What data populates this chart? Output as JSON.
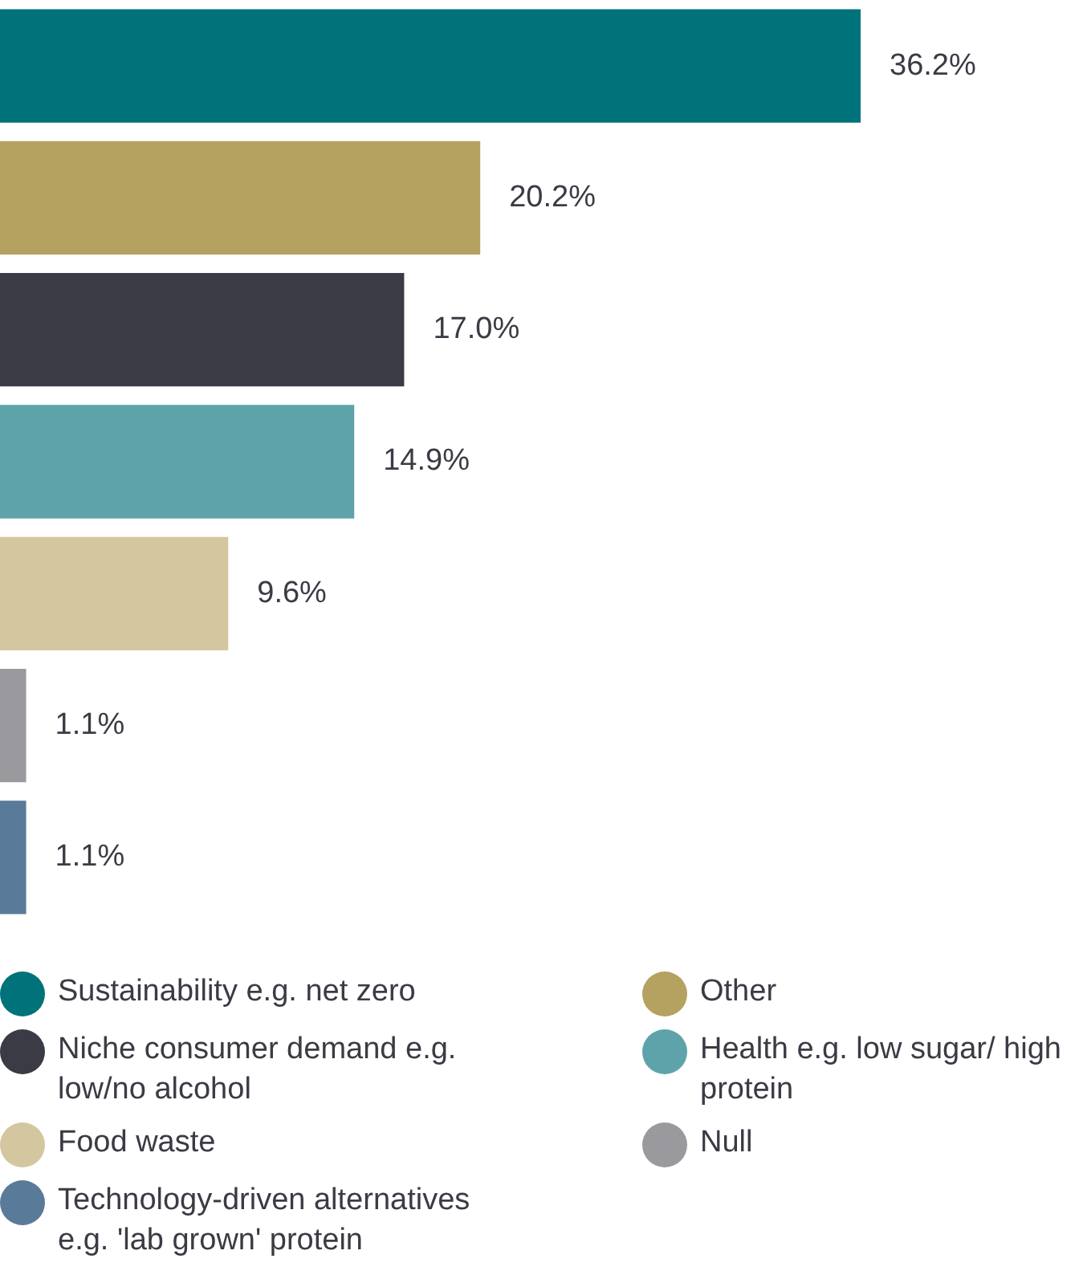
{
  "chart_data": {
    "type": "bar",
    "orientation": "horizontal",
    "stacked": true,
    "categories": [
      null,
      null,
      null,
      null,
      null,
      null,
      null
    ],
    "series": [
      {
        "name": "Sustainability e.g. net zero",
        "color": "#00737a",
        "values": [
          36.2,
          null,
          null,
          null,
          null,
          null,
          null
        ],
        "value_labels": [
          "36.2%",
          null,
          null,
          null,
          null,
          null,
          null
        ]
      },
      {
        "name": "Other",
        "color": "#b5a160",
        "values": [
          null,
          20.2,
          null,
          null,
          null,
          null,
          null
        ],
        "value_labels": [
          null,
          "20.2%",
          null,
          null,
          null,
          null,
          null
        ]
      },
      {
        "name": "Niche consumer demand e.g. low/no alcohol",
        "color": "#3a3b44",
        "values": [
          null,
          null,
          17.0,
          null,
          null,
          null,
          null
        ],
        "value_labels": [
          null,
          null,
          "17.0%",
          null,
          null,
          null,
          null
        ]
      },
      {
        "name": "Health e.g. low sugar/ high protein",
        "color": "#5fa3aa",
        "values": [
          null,
          null,
          null,
          14.9,
          null,
          null,
          null
        ],
        "value_labels": [
          null,
          null,
          null,
          "14.9%",
          null,
          null,
          null
        ]
      },
      {
        "name": "Food waste",
        "color": "#d4c69f",
        "values": [
          null,
          null,
          null,
          null,
          9.6,
          null,
          null
        ],
        "value_labels": [
          null,
          null,
          null,
          null,
          "9.6%",
          null,
          null
        ]
      },
      {
        "name": "Null",
        "color": "#9a9a9e",
        "values": [
          null,
          null,
          null,
          null,
          null,
          1.1,
          null
        ],
        "value_labels": [
          null,
          null,
          null,
          null,
          null,
          "1.1%",
          null
        ]
      },
      {
        "name": "Technology-driven alternatives e.g. 'lab grown' protein",
        "color": "#5a7a9a",
        "values": [
          null,
          null,
          null,
          null,
          null,
          null,
          1.1
        ],
        "value_labels": [
          null,
          null,
          null,
          null,
          null,
          null,
          "1.1%"
        ]
      }
    ],
    "tick_labels": false,
    "legend": "bottom"
  }
}
